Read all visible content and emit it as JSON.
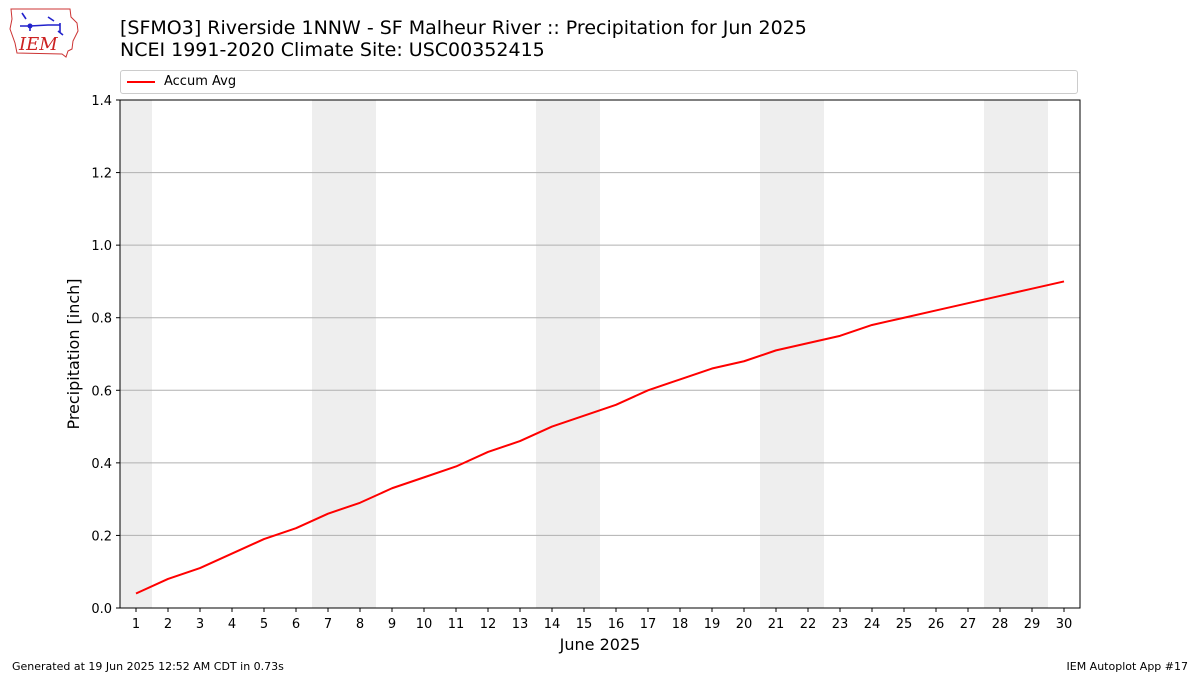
{
  "logo": {
    "text": "IEM",
    "icon": "iem-iowa-logo-icon"
  },
  "header": {
    "title_line1": "[SFMO3] Riverside 1NNW - SF Malheur River :: Precipitation for Jun 2025",
    "title_line2": "NCEI 1991-2020 Climate Site: USC00352415"
  },
  "footer": {
    "left": "Generated at 19 Jun 2025 12:52 AM CDT in 0.73s",
    "right": "IEM Autoplot App #17"
  },
  "chart_data": {
    "type": "line",
    "xlabel": "June 2025",
    "ylabel": "Precipitation [inch]",
    "ylim": [
      0,
      1.4
    ],
    "xlim": [
      0.5,
      30.5
    ],
    "yticks": [
      "0.0",
      "0.2",
      "0.4",
      "0.6",
      "0.8",
      "1.0",
      "1.2",
      "1.4"
    ],
    "x": [
      1,
      2,
      3,
      4,
      5,
      6,
      7,
      8,
      9,
      10,
      11,
      12,
      13,
      14,
      15,
      16,
      17,
      18,
      19,
      20,
      21,
      22,
      23,
      24,
      25,
      26,
      27,
      28,
      29,
      30
    ],
    "xtick_labels": [
      "1",
      "2",
      "3",
      "4",
      "5",
      "6",
      "7",
      "8",
      "9",
      "10",
      "11",
      "12",
      "13",
      "14",
      "15",
      "16",
      "17",
      "18",
      "19",
      "20",
      "21",
      "22",
      "23",
      "24",
      "25",
      "26",
      "27",
      "28",
      "29",
      "30"
    ],
    "series": [
      {
        "name": "Accum Avg",
        "color": "#ff0000",
        "values": [
          0.04,
          0.08,
          0.11,
          0.15,
          0.19,
          0.22,
          0.26,
          0.29,
          0.33,
          0.36,
          0.39,
          0.43,
          0.46,
          0.5,
          0.53,
          0.56,
          0.6,
          0.63,
          0.66,
          0.68,
          0.71,
          0.73,
          0.75,
          0.78,
          0.8,
          0.82,
          0.84,
          0.86,
          0.88,
          0.9
        ]
      }
    ],
    "weekend_shading": [
      [
        0.5,
        1.5
      ],
      [
        6.5,
        8.5
      ],
      [
        13.5,
        15.5
      ],
      [
        20.5,
        22.5
      ],
      [
        27.5,
        29.5
      ]
    ],
    "shade_color": "#eeeeee",
    "grid": "horizontal",
    "legend": "top"
  }
}
